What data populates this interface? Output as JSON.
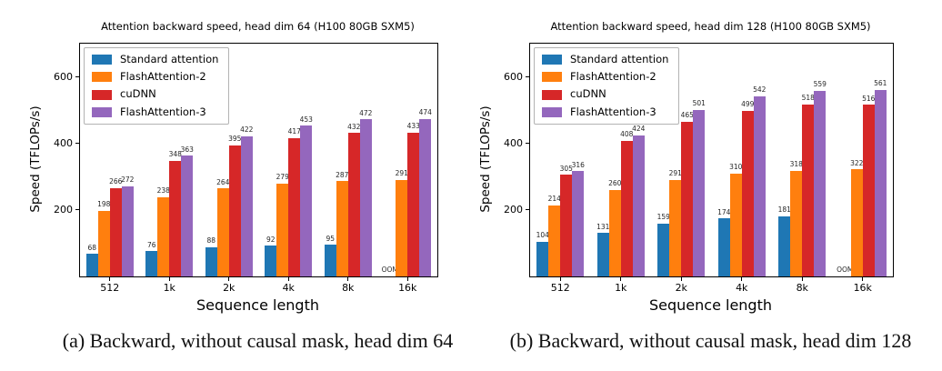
{
  "oom_label": "OOM",
  "chart_data": [
    {
      "type": "bar",
      "title": "Attention backward speed, head dim 64 (H100 80GB SXM5)",
      "xlabel": "Sequence length",
      "ylabel": "Speed (TFLOPs/s)",
      "caption": "(a) Backward, without causal mask, head dim 64",
      "categories": [
        "512",
        "1k",
        "2k",
        "4k",
        "8k",
        "16k"
      ],
      "yticks": [
        200,
        400,
        600
      ],
      "ylim": [
        0,
        700
      ],
      "grid": false,
      "legend_position": "upper left",
      "series": [
        {
          "name": "Standard attention",
          "color": "#1f77b4",
          "values": [
            68,
            76,
            88,
            92,
            95,
            null
          ]
        },
        {
          "name": "FlashAttention-2",
          "color": "#ff7f0e",
          "values": [
            198,
            238,
            264,
            279,
            287,
            291
          ]
        },
        {
          "name": "cuDNN",
          "color": "#d62728",
          "values": [
            266,
            348,
            395,
            417,
            432,
            433
          ]
        },
        {
          "name": "FlashAttention-3",
          "color": "#9467bd",
          "values": [
            272,
            363,
            422,
            453,
            472,
            474
          ]
        }
      ]
    },
    {
      "type": "bar",
      "title": "Attention backward speed, head dim 128 (H100 80GB SXM5)",
      "xlabel": "Sequence length",
      "ylabel": "Speed (TFLOPs/s)",
      "caption": "(b) Backward, without causal mask, head dim 128",
      "categories": [
        "512",
        "1k",
        "2k",
        "4k",
        "8k",
        "16k"
      ],
      "yticks": [
        200,
        400,
        600
      ],
      "ylim": [
        0,
        700
      ],
      "grid": false,
      "legend_position": "upper left",
      "series": [
        {
          "name": "Standard attention",
          "color": "#1f77b4",
          "values": [
            104,
            131,
            159,
            174,
            181,
            null
          ]
        },
        {
          "name": "FlashAttention-2",
          "color": "#ff7f0e",
          "values": [
            214,
            260,
            291,
            310,
            318,
            322
          ]
        },
        {
          "name": "cuDNN",
          "color": "#d62728",
          "values": [
            305,
            408,
            465,
            499,
            518,
            516
          ]
        },
        {
          "name": "FlashAttention-3",
          "color": "#9467bd",
          "values": [
            316,
            424,
            501,
            542,
            559,
            561
          ]
        }
      ]
    }
  ]
}
